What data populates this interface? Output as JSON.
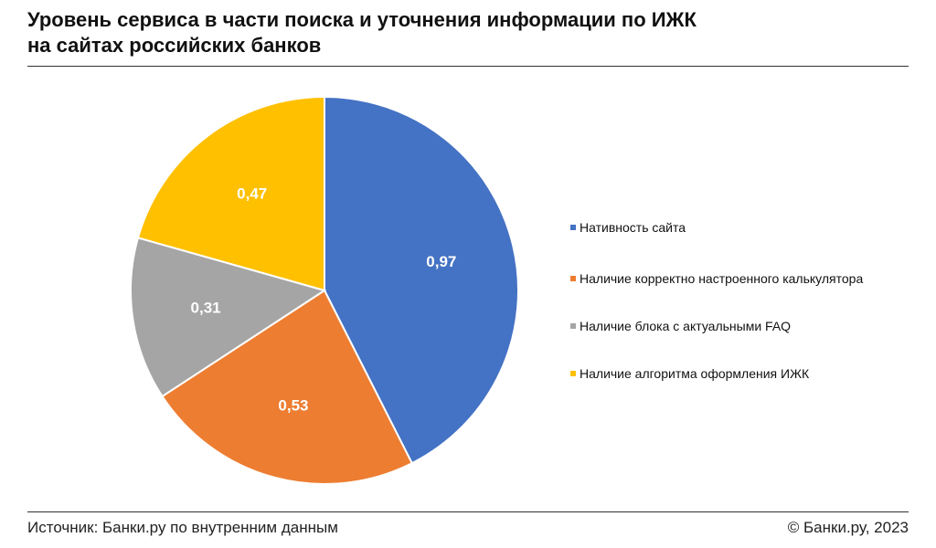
{
  "title": {
    "line1": "Уровень сервиса в части поиска и уточнения информации по ИЖК",
    "line2": "на сайтах российских банков"
  },
  "footer": {
    "source": "Источник: Банки.ру по внутренним данным",
    "copyright": "© Банки.ру, 2023"
  },
  "chart_data": {
    "type": "pie",
    "title": "Уровень сервиса в части поиска и уточнения информации по ИЖК на сайтах российских банков",
    "legend_position": "right",
    "slices": [
      {
        "name": "Нативность сайта",
        "value": 0.97,
        "label": "0,97",
        "color": "#4472C4"
      },
      {
        "name": "Наличие корректно настроенного калькулятора",
        "value": 0.53,
        "label": "0,53",
        "color": "#ED7D31"
      },
      {
        "name": "Наличие блока с актуальными FAQ",
        "value": 0.31,
        "label": "0,31",
        "color": "#A5A5A5"
      },
      {
        "name": "Наличие алгоритма оформления ИЖК",
        "value": 0.47,
        "label": "0,47",
        "color": "#FFC000"
      }
    ]
  }
}
